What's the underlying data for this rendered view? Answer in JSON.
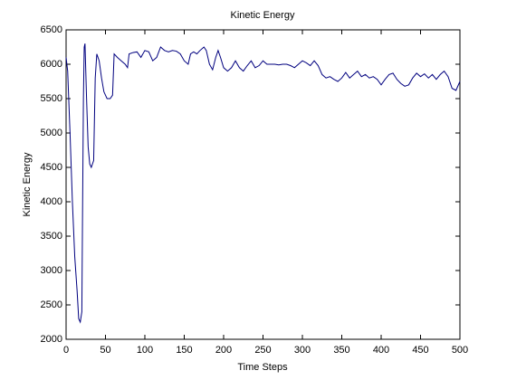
{
  "chart_data": {
    "type": "line",
    "title": "Kinetic Energy",
    "xlabel": "Time Steps",
    "ylabel": "Kinetic Energy",
    "x": [
      0,
      2,
      5,
      8,
      11,
      14,
      16,
      18,
      20,
      21,
      22,
      23,
      24,
      26,
      28,
      30,
      32,
      35,
      37,
      39,
      42,
      45,
      48,
      52,
      56,
      59,
      61,
      65,
      70,
      75,
      78,
      80,
      85,
      90,
      95,
      100,
      105,
      110,
      115,
      120,
      125,
      130,
      135,
      140,
      145,
      150,
      155,
      158,
      162,
      166,
      170,
      175,
      178,
      182,
      186,
      190,
      193,
      196,
      200,
      205,
      210,
      215,
      220,
      225,
      230,
      235,
      240,
      245,
      250,
      255,
      260,
      265,
      270,
      275,
      280,
      285,
      290,
      295,
      300,
      305,
      310,
      315,
      320,
      325,
      330,
      335,
      340,
      345,
      350,
      355,
      360,
      365,
      370,
      375,
      380,
      385,
      390,
      395,
      400,
      405,
      410,
      415,
      420,
      425,
      430,
      435,
      440,
      445,
      450,
      455,
      460,
      465,
      470,
      475,
      480,
      485,
      490,
      495,
      500
    ],
    "series": [
      {
        "name": "Kinetic Energy",
        "color": "#00007f",
        "values": [
          6100,
          5900,
          5000,
          4000,
          3200,
          2700,
          2300,
          2250,
          2400,
          4000,
          5500,
          6250,
          6300,
          5500,
          4800,
          4550,
          4500,
          4600,
          5800,
          6150,
          6050,
          5800,
          5600,
          5500,
          5500,
          5550,
          6150,
          6100,
          6050,
          6000,
          5950,
          6150,
          6170,
          6180,
          6100,
          6200,
          6180,
          6050,
          6100,
          6250,
          6200,
          6180,
          6200,
          6190,
          6150,
          6050,
          6000,
          6150,
          6180,
          6150,
          6200,
          6250,
          6200,
          6000,
          5920,
          6100,
          6200,
          6100,
          5950,
          5900,
          5950,
          6050,
          5950,
          5900,
          5980,
          6050,
          5950,
          5980,
          6050,
          6000,
          6000,
          6000,
          5990,
          6000,
          6000,
          5980,
          5950,
          6000,
          6050,
          6020,
          5980,
          6050,
          5980,
          5850,
          5800,
          5820,
          5780,
          5750,
          5800,
          5880,
          5800,
          5850,
          5900,
          5820,
          5850,
          5800,
          5820,
          5780,
          5700,
          5780,
          5850,
          5870,
          5780,
          5720,
          5680,
          5700,
          5800,
          5870,
          5820,
          5860,
          5800,
          5850,
          5780,
          5850,
          5900,
          5820,
          5650,
          5620,
          5750
        ]
      }
    ],
    "xlim": [
      0,
      500
    ],
    "ylim": [
      2000,
      6500
    ],
    "xticks": [
      0,
      50,
      100,
      150,
      200,
      250,
      300,
      350,
      400,
      450,
      500
    ],
    "yticks": [
      2000,
      2500,
      3000,
      3500,
      4000,
      4500,
      5000,
      5500,
      6000,
      6500
    ]
  }
}
